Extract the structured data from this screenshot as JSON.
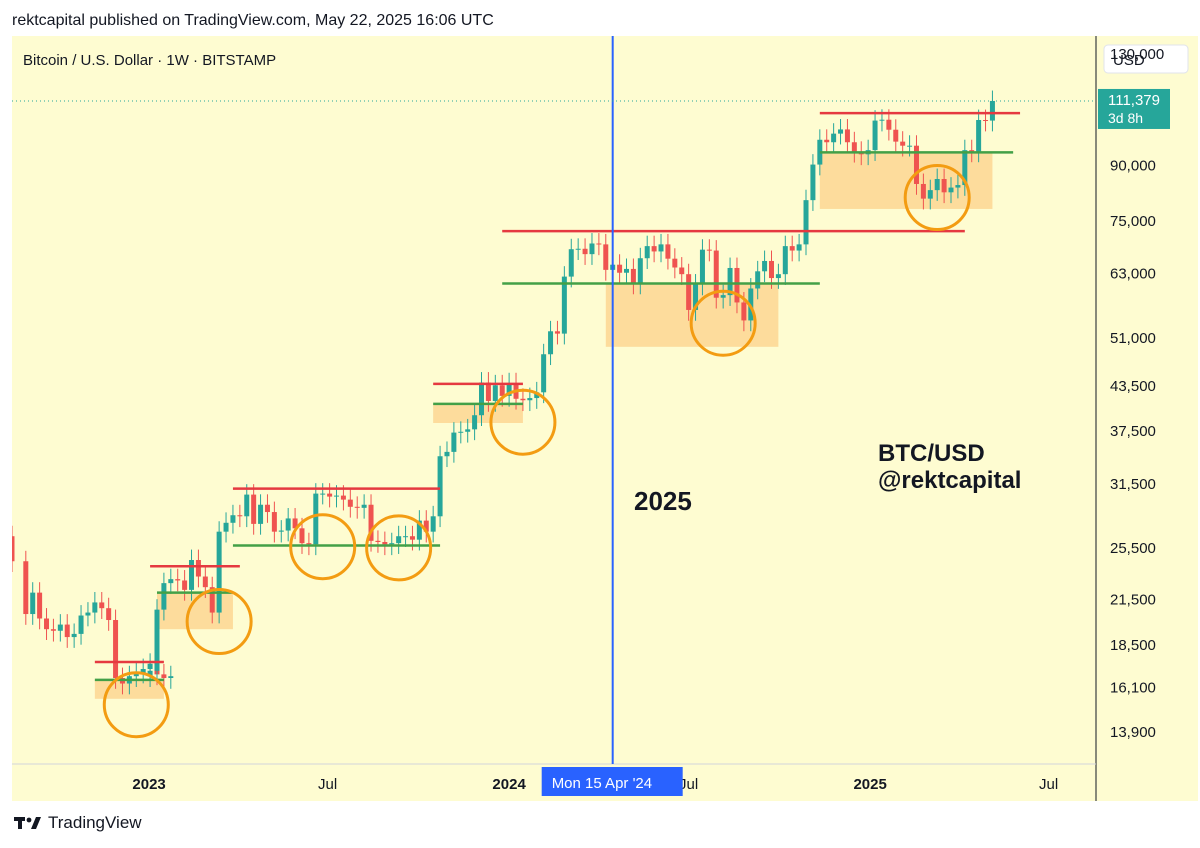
{
  "header": {
    "published": "rektcapital published on TradingView.com, May 22, 2025 16:06 UTC"
  },
  "chart_data": {
    "type": "candlestick",
    "symbol": "Bitcoin / U.S. Dollar · 1W · BITSTAMP",
    "currency_button": "USD",
    "y_scale": "log",
    "ylim": [
      12500,
      138000
    ],
    "y_ticks": [
      "130,000",
      "90,000",
      "75,000",
      "63,000",
      "51,000",
      "43,500",
      "37,500",
      "31,500",
      "25,500",
      "21,500",
      "18,500",
      "16,100",
      "13,900"
    ],
    "x_ticks": [
      "2023",
      "Jul",
      "2024",
      "Jul",
      "2025",
      "Jul"
    ],
    "x_range": [
      "2022-08-15",
      "2025-08-18"
    ],
    "last_price": {
      "value": "111,379",
      "countdown": "3d 8h",
      "numeric": 111379
    },
    "crosshair": {
      "date": "2024-04-15",
      "label": "Mon 15 Apr '24"
    },
    "annotations": {
      "year_label": "2025",
      "watermark_line1": "BTC/USD",
      "watermark_line2": "@rektcapital"
    },
    "colors": {
      "background": "#fefcd1",
      "up": "#26a69a",
      "down": "#ef5350",
      "resistance": "#e53940",
      "support": "#43a047",
      "zone": "#fcd28a",
      "circle": "#f39c12",
      "crosshair": "#2962ff"
    },
    "weekly_closes": [
      [
        2022,
        19,
        24400
      ],
      [
        2022,
        21,
        20500
      ],
      [
        2022,
        22,
        22000
      ],
      [
        2022,
        23,
        20200
      ],
      [
        2022,
        24,
        19500
      ],
      [
        2022,
        25,
        19400
      ],
      [
        2022,
        26,
        19800
      ],
      [
        2022,
        27,
        19000
      ],
      [
        2022,
        28,
        19200
      ],
      [
        2022,
        29,
        20400
      ],
      [
        2022,
        30,
        20600
      ],
      [
        2022,
        31,
        21300
      ],
      [
        2022,
        32,
        20900
      ],
      [
        2022,
        33,
        20100
      ],
      [
        2022,
        34,
        16600
      ],
      [
        2022,
        35,
        16300
      ],
      [
        2022,
        36,
        16700
      ],
      [
        2022,
        37,
        16900
      ],
      [
        2022,
        38,
        17100
      ],
      [
        2022,
        39,
        17400
      ],
      [
        2022,
        40,
        16800
      ],
      [
        2022,
        41,
        16600
      ],
      [
        2022,
        42,
        16700
      ],
      [
        2023,
        1,
        17000
      ],
      [
        2023,
        2,
        20800
      ],
      [
        2023,
        3,
        22700
      ],
      [
        2023,
        4,
        23000
      ],
      [
        2023,
        5,
        22900
      ],
      [
        2023,
        6,
        22200
      ],
      [
        2023,
        7,
        24500
      ],
      [
        2023,
        8,
        23200
      ],
      [
        2023,
        9,
        22400
      ],
      [
        2023,
        10,
        20600
      ],
      [
        2023,
        11,
        26900
      ],
      [
        2023,
        12,
        27700
      ],
      [
        2023,
        13,
        28400
      ],
      [
        2023,
        14,
        28300
      ],
      [
        2023,
        15,
        30400
      ],
      [
        2023,
        16,
        27600
      ],
      [
        2023,
        17,
        29400
      ],
      [
        2023,
        18,
        28700
      ],
      [
        2023,
        19,
        26900
      ],
      [
        2023,
        20,
        27000
      ],
      [
        2023,
        21,
        28100
      ],
      [
        2023,
        22,
        27200
      ],
      [
        2023,
        23,
        25900
      ],
      [
        2023,
        24,
        25800
      ],
      [
        2023,
        25,
        30500
      ],
      [
        2023,
        26,
        30500
      ],
      [
        2023,
        27,
        30200
      ],
      [
        2023,
        28,
        30300
      ],
      [
        2023,
        29,
        29900
      ],
      [
        2023,
        30,
        29200
      ],
      [
        2023,
        31,
        29100
      ],
      [
        2023,
        32,
        29400
      ],
      [
        2023,
        33,
        26100
      ],
      [
        2023,
        34,
        26000
      ],
      [
        2023,
        35,
        25800
      ],
      [
        2023,
        36,
        25900
      ],
      [
        2023,
        37,
        26500
      ],
      [
        2023,
        38,
        26500
      ],
      [
        2023,
        39,
        26200
      ],
      [
        2023,
        40,
        27900
      ],
      [
        2023,
        41,
        26900
      ],
      [
        2023,
        42,
        28300
      ],
      [
        2023,
        43,
        34500
      ],
      [
        2023,
        44,
        35000
      ],
      [
        2023,
        45,
        37300
      ],
      [
        2023,
        46,
        37400
      ],
      [
        2023,
        47,
        37700
      ],
      [
        2023,
        48,
        39500
      ],
      [
        2023,
        49,
        44000
      ],
      [
        2023,
        50,
        41400
      ],
      [
        2023,
        51,
        43600
      ],
      [
        2023,
        52,
        42100
      ],
      [
        2024,
        1,
        43900
      ],
      [
        2024,
        2,
        41700
      ],
      [
        2024,
        3,
        41500
      ],
      [
        2024,
        4,
        41800
      ],
      [
        2024,
        5,
        42600
      ],
      [
        2024,
        6,
        48300
      ],
      [
        2024,
        7,
        52100
      ],
      [
        2024,
        8,
        51700
      ],
      [
        2024,
        9,
        62400
      ],
      [
        2024,
        10,
        68300
      ],
      [
        2024,
        11,
        68400
      ],
      [
        2024,
        12,
        67200
      ],
      [
        2024,
        13,
        69600
      ],
      [
        2024,
        14,
        69400
      ],
      [
        2024,
        15,
        63800
      ],
      [
        2024,
        16,
        64900
      ],
      [
        2024,
        17,
        63200
      ],
      [
        2024,
        18,
        64000
      ],
      [
        2024,
        19,
        61000
      ],
      [
        2024,
        20,
        66300
      ],
      [
        2024,
        21,
        69000
      ],
      [
        2024,
        22,
        67800
      ],
      [
        2024,
        23,
        69400
      ],
      [
        2024,
        24,
        66200
      ],
      [
        2024,
        25,
        64300
      ],
      [
        2024,
        26,
        62900
      ],
      [
        2024,
        27,
        55900
      ],
      [
        2024,
        28,
        60800
      ],
      [
        2024,
        29,
        68200
      ],
      [
        2024,
        30,
        68000
      ],
      [
        2024,
        31,
        58200
      ],
      [
        2024,
        32,
        58700
      ],
      [
        2024,
        33,
        64200
      ],
      [
        2024,
        34,
        57300
      ],
      [
        2024,
        35,
        54000
      ],
      [
        2024,
        36,
        60000
      ],
      [
        2024,
        37,
        63500
      ],
      [
        2024,
        38,
        65700
      ],
      [
        2024,
        39,
        62100
      ],
      [
        2024,
        40,
        62900
      ],
      [
        2024,
        41,
        69000
      ],
      [
        2024,
        42,
        68000
      ],
      [
        2024,
        43,
        69400
      ],
      [
        2024,
        44,
        80300
      ],
      [
        2024,
        45,
        90300
      ],
      [
        2024,
        46,
        98000
      ],
      [
        2024,
        47,
        97200
      ],
      [
        2024,
        48,
        100000
      ],
      [
        2024,
        49,
        101400
      ],
      [
        2024,
        50,
        97200
      ],
      [
        2024,
        51,
        94200
      ],
      [
        2024,
        52,
        93400
      ],
      [
        2025,
        1,
        94700
      ],
      [
        2025,
        2,
        104400
      ],
      [
        2025,
        3,
        104700
      ],
      [
        2025,
        4,
        101300
      ],
      [
        2025,
        5,
        97400
      ],
      [
        2025,
        6,
        96100
      ],
      [
        2025,
        7,
        96100
      ],
      [
        2025,
        8,
        84700
      ],
      [
        2025,
        9,
        80700
      ],
      [
        2025,
        10,
        83000
      ],
      [
        2025,
        11,
        86100
      ],
      [
        2025,
        12,
        82400
      ],
      [
        2025,
        13,
        83700
      ],
      [
        2025,
        14,
        84400
      ],
      [
        2025,
        15,
        94700
      ],
      [
        2025,
        16,
        94300
      ],
      [
        2025,
        17,
        104600
      ],
      [
        2025,
        18,
        104400
      ],
      [
        2025,
        19,
        111379
      ]
    ]
  }
}
